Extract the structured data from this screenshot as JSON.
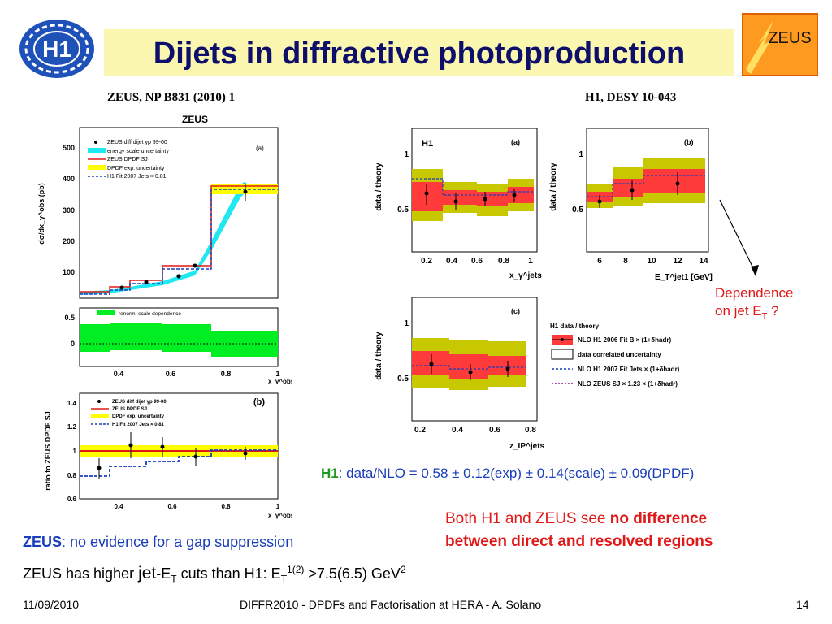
{
  "title": "Dijets in diffractive photoproduction",
  "logos": {
    "h1": "H1",
    "zeus": "ZEUS"
  },
  "refs": {
    "zeus": "ZEUS, NP B831 (2010) 1",
    "h1": "H1, DESY 10-043"
  },
  "zeus_plot": {
    "header": "ZEUS",
    "ylabel_top": "dσ/dx_γ^obs (pb)",
    "yticks_top": [
      "500",
      "400",
      "300",
      "200",
      "100"
    ],
    "yticks_mid": [
      "0.5",
      "0"
    ],
    "xticks": [
      "0.4",
      "0.6",
      "0.8",
      "1"
    ],
    "xlabel": "x_γ^obs",
    "panel_a": "(a)",
    "legend": [
      "ZEUS diff dijet γp 99-00",
      "energy scale uncertainty",
      "ZEUS DPDF SJ",
      "DPDF exp. uncertainty",
      "H1 Fit 2007 Jets × 0.81"
    ],
    "renorm_legend": "renorm. scale dependence"
  },
  "zeus_ratio_plot": {
    "ylabel": "ratio to ZEUS DPDF SJ",
    "panel": "(b)",
    "yticks": [
      "1.4",
      "1.2",
      "1",
      "0.8",
      "0.6"
    ],
    "xticks": [
      "0.4",
      "0.6",
      "0.8",
      "1"
    ],
    "xlabel": "x_γ^obs",
    "legend": [
      "ZEUS diff dijet γp 99-00",
      "ZEUS DPDF SJ",
      "DPDF exp. uncertainty",
      "H1 Fit 2007 Jets × 0.81"
    ]
  },
  "h1_plots": {
    "ylabel": "data / theory",
    "a": {
      "panel": "(a)",
      "tag": "H1",
      "xticks": [
        "0.2",
        "0.4",
        "0.6",
        "0.8",
        "1"
      ],
      "xlabel": "x_γ^jets",
      "yticks": [
        "1",
        "0.5"
      ]
    },
    "b": {
      "panel": "(b)",
      "xticks": [
        "6",
        "8",
        "10",
        "12",
        "14"
      ],
      "xlabel": "E_T^jet1 [GeV]",
      "yticks": [
        "1",
        "0.5"
      ]
    },
    "c": {
      "panel": "(c)",
      "xticks": [
        "0.2",
        "0.4",
        "0.6",
        "0.8"
      ],
      "xlabel": "z_IP^jets",
      "yticks": [
        "1",
        "0.5"
      ]
    },
    "legend": [
      "H1 data / theory",
      "NLO H1 2006 Fit B × (1+δhadr)",
      "data correlated uncertainty",
      "NLO H1 2007 Fit Jets × (1+δhadr)",
      "NLO ZEUS SJ × 1.23 × (1+δhadr)"
    ]
  },
  "annotation_dependence": [
    "Dependence",
    "on jet E",
    "T",
    " ?"
  ],
  "h1_result": {
    "prefix": "H1",
    "text": ": data/NLO = 0.58 ± 0.12(exp) ± 0.14(scale) ± 0.09(DPDF)"
  },
  "both_note": {
    "line1_plain": "Both H1 and ZEUS see ",
    "line1_bold": "no difference",
    "line2_bold": "between direct and resolved regions"
  },
  "zeus_note": {
    "prefix": "ZEUS",
    "text": ": no evidence for a gap suppression"
  },
  "cuts_note": {
    "a": "ZEUS has higher ",
    "jet": "jet",
    "b": "-E",
    "sub1": "T",
    "c": " cuts than H1: E",
    "sub2": "T",
    "sup": "1(2)",
    "d": " >7.5(6.5) GeV",
    "sup2": "2"
  },
  "footer": {
    "date": "11/09/2010",
    "center": "DIFFR2010  -  DPDFs and Factorisation at HERA  -  A. Solano",
    "page": "14"
  },
  "colors": {
    "title_bg": "#fbf7b0",
    "title_text": "#0d0f6b",
    "red": "#e01818",
    "blue": "#1a3dbb",
    "cyan": "#20e8f0",
    "yellow": "#ffff00",
    "green": "#00ee22",
    "olive": "#c8c800"
  }
}
